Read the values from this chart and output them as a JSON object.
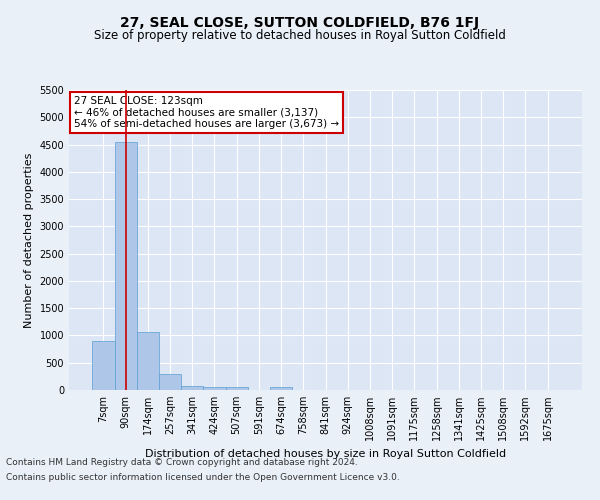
{
  "title": "27, SEAL CLOSE, SUTTON COLDFIELD, B76 1FJ",
  "subtitle": "Size of property relative to detached houses in Royal Sutton Coldfield",
  "xlabel": "Distribution of detached houses by size in Royal Sutton Coldfield",
  "ylabel": "Number of detached properties",
  "footer_line1": "Contains HM Land Registry data © Crown copyright and database right 2024.",
  "footer_line2": "Contains public sector information licensed under the Open Government Licence v3.0.",
  "categories": [
    "7sqm",
    "90sqm",
    "174sqm",
    "257sqm",
    "341sqm",
    "424sqm",
    "507sqm",
    "591sqm",
    "674sqm",
    "758sqm",
    "841sqm",
    "924sqm",
    "1008sqm",
    "1091sqm",
    "1175sqm",
    "1258sqm",
    "1341sqm",
    "1425sqm",
    "1508sqm",
    "1592sqm",
    "1675sqm"
  ],
  "values": [
    900,
    4550,
    1070,
    290,
    80,
    60,
    60,
    0,
    60,
    0,
    0,
    0,
    0,
    0,
    0,
    0,
    0,
    0,
    0,
    0,
    0
  ],
  "bar_color": "#aec6e8",
  "bar_edge_color": "#5a9fd4",
  "vline_x": 1.0,
  "vline_color": "#cc0000",
  "annotation_text": "27 SEAL CLOSE: 123sqm\n← 46% of detached houses are smaller (3,137)\n54% of semi-detached houses are larger (3,673) →",
  "annotation_box_color": "#ffffff",
  "annotation_box_edge": "#cc0000",
  "ylim": [
    0,
    5500
  ],
  "yticks": [
    0,
    500,
    1000,
    1500,
    2000,
    2500,
    3000,
    3500,
    4000,
    4500,
    5000,
    5500
  ],
  "bg_color": "#eaf0f8",
  "plot_bg_color": "#dce6f5",
  "grid_color": "#ffffff",
  "title_fontsize": 10,
  "subtitle_fontsize": 8.5,
  "xlabel_fontsize": 8,
  "ylabel_fontsize": 8,
  "tick_fontsize": 7,
  "footer_fontsize": 6.5,
  "annotation_fontsize": 7.5
}
